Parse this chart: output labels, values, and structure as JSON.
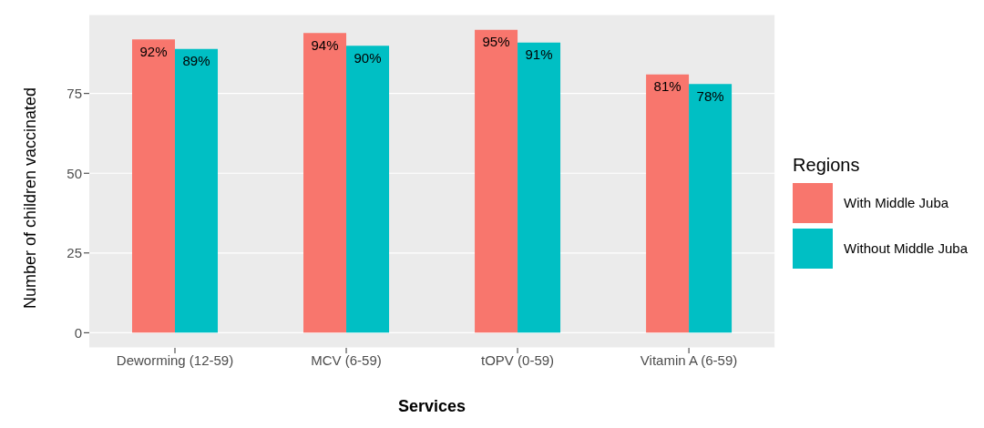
{
  "chart_data": {
    "type": "bar",
    "xlabel": "Services",
    "ylabel": "Number of children vaccinated",
    "legend_title": "Regions",
    "categories": [
      "Deworming (12-59)",
      "MCV (6-59)",
      "tOPV (0-59)",
      "Vitamin A (6-59)"
    ],
    "series": [
      {
        "name": "With Middle Juba",
        "color": "#f8766d",
        "values": [
          92,
          94,
          95,
          81
        ],
        "value_labels": [
          "92%",
          "94%",
          "95%",
          "81%"
        ]
      },
      {
        "name": "Without Middle Juba",
        "color": "#00bfc4",
        "values": [
          89,
          90,
          91,
          78
        ],
        "value_labels": [
          "89%",
          "90%",
          "91%",
          "78%"
        ]
      }
    ],
    "ylim": [
      -4.75,
      99.75
    ],
    "yticks": [
      0,
      25,
      50,
      75
    ],
    "grid": "y",
    "legend": "right"
  }
}
